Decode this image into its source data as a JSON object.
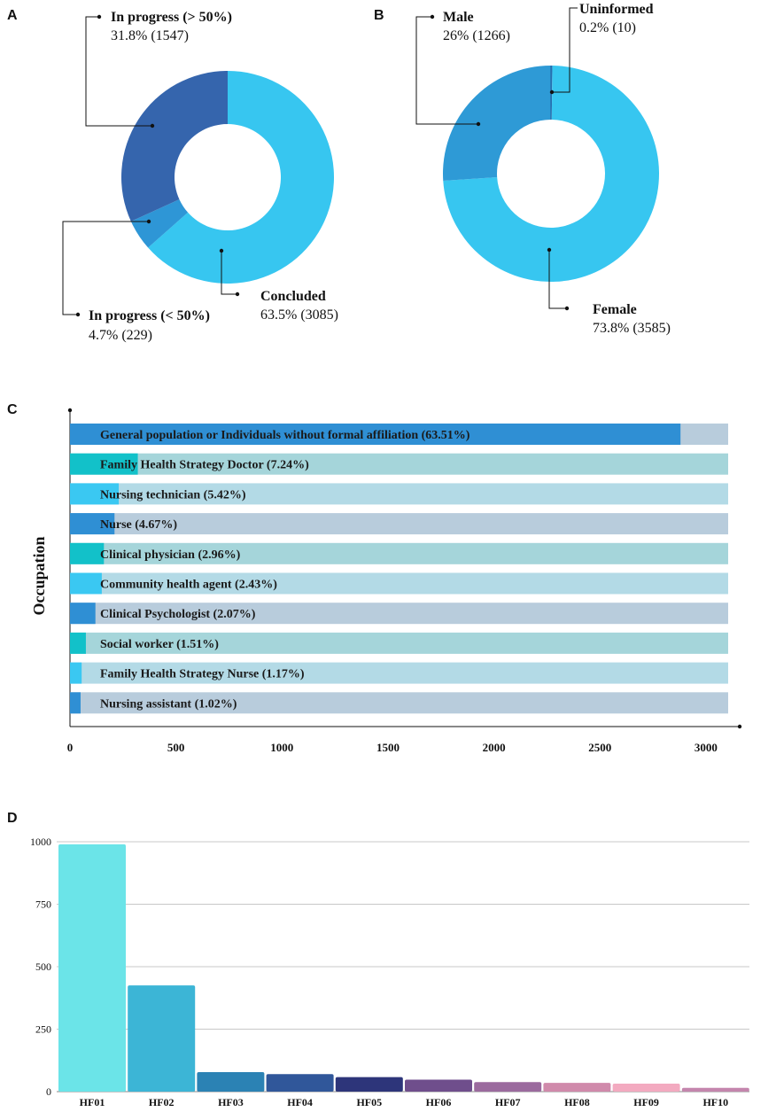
{
  "chart_data": [
    {
      "panel": "A",
      "type": "pie",
      "slices": [
        {
          "label": "In progress (> 50%)",
          "pct_label": "31.8% (1547)",
          "value": 1547,
          "color": "#3565ad"
        },
        {
          "label": "In progress (< 50%)",
          "pct_label": "4.7% (229)",
          "value": 229,
          "color": "#2e96d6"
        },
        {
          "label": "Concluded",
          "pct_label": "63.5% (3085)",
          "value": 3085,
          "color": "#37c6f0"
        }
      ]
    },
    {
      "panel": "B",
      "type": "pie",
      "slices": [
        {
          "label": "Uninformed",
          "pct_label": "0.2% (10)",
          "value": 10,
          "color": "#2f7fc0"
        },
        {
          "label": "Female",
          "pct_label": "73.8% (3585)",
          "value": 3585,
          "color": "#37c6f0"
        },
        {
          "label": "Male",
          "pct_label": "26% (1266)",
          "value": 1266,
          "color": "#2e9ad6"
        }
      ]
    },
    {
      "panel": "C",
      "type": "bar",
      "orientation": "horizontal",
      "ylabel": "Occupation",
      "xlim": [
        0,
        3100
      ],
      "xticks": [
        0,
        500,
        1000,
        1500,
        2000,
        2500,
        3000
      ],
      "bars": [
        {
          "label": "General population or Individuals without formal affiliation (63.51%)",
          "value": 2880,
          "color": "#2f8fd4",
          "track": "#b8ccdc"
        },
        {
          "label": "Family Health Strategy Doctor (7.24%)",
          "value": 320,
          "color": "#12c1c9",
          "track": "#a5d5da"
        },
        {
          "label": "Nursing technician (5.42%)",
          "value": 230,
          "color": "#3ac8f2",
          "track": "#b3dae6"
        },
        {
          "label": "Nurse (4.67%)",
          "value": 210,
          "color": "#2f8fd4",
          "track": "#b8ccdc"
        },
        {
          "label": "Clinical physician (2.96%)",
          "value": 160,
          "color": "#12c1c9",
          "track": "#a5d5da"
        },
        {
          "label": "Community health agent (2.43%)",
          "value": 150,
          "color": "#3ac8f2",
          "track": "#b3dae6"
        },
        {
          "label": "Clinical Psychologist (2.07%)",
          "value": 120,
          "color": "#2f8fd4",
          "track": "#b8ccdc"
        },
        {
          "label": "Social worker (1.51%)",
          "value": 75,
          "color": "#12c1c9",
          "track": "#a5d5da"
        },
        {
          "label": "Family Health Strategy Nurse (1.17%)",
          "value": 55,
          "color": "#3ac8f2",
          "track": "#b3dae6"
        },
        {
          "label": "Nursing assistant (1.02%)",
          "value": 50,
          "color": "#2f8fd4",
          "track": "#b8ccdc"
        }
      ]
    },
    {
      "panel": "D",
      "type": "bar",
      "orientation": "vertical",
      "ylim": [
        0,
        1000
      ],
      "yticks": [
        0,
        250,
        500,
        750,
        1000
      ],
      "categories": [
        "HF01",
        "HF02",
        "HF03",
        "HF04",
        "HF05",
        "HF06",
        "HF07",
        "HF08",
        "HF09",
        "HF10"
      ],
      "values": [
        990,
        425,
        78,
        70,
        58,
        48,
        38,
        35,
        32,
        15
      ],
      "colors": [
        "#6be4e8",
        "#3cb5d6",
        "#2b82b4",
        "#30579a",
        "#2d357a",
        "#6f4e8c",
        "#9b6a9e",
        "#d08aab",
        "#f3aac0",
        "#c486ad"
      ]
    }
  ]
}
